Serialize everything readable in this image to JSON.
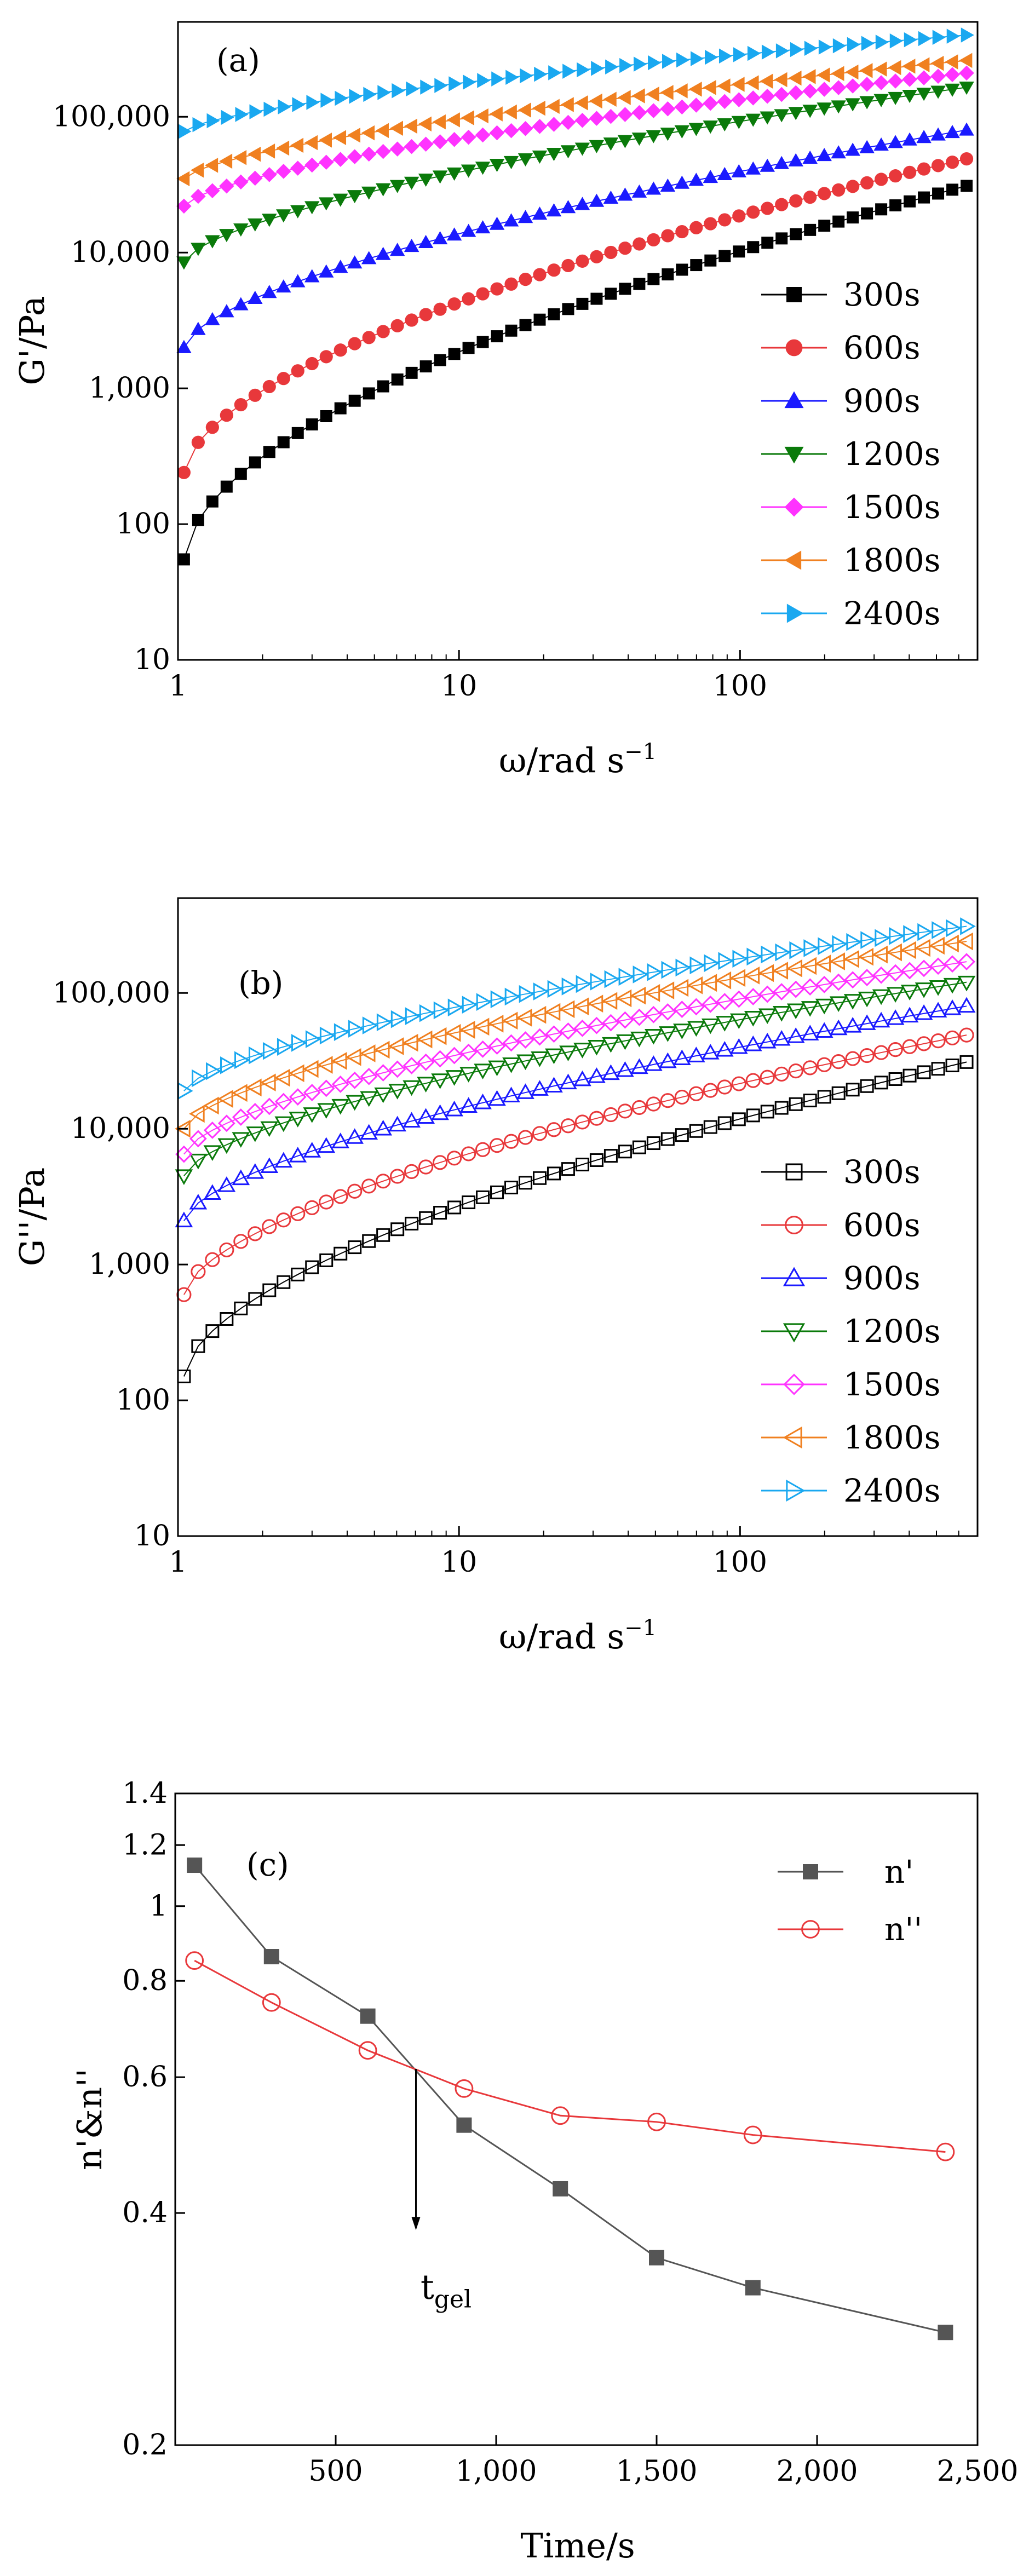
{
  "chart_data": [
    {
      "type": "scatter",
      "panel": "(a)",
      "ylabel": "G'/Pa",
      "xlabel": {
        "base": "ω/rad s",
        "sup": "−1"
      },
      "xscale": "log",
      "yscale": "log",
      "xlim": [
        1,
        700
      ],
      "ylim": [
        10,
        500000
      ],
      "xticks": [
        {
          "v": 1,
          "label": "1"
        },
        {
          "v": 10,
          "label": "10"
        },
        {
          "v": 100,
          "label": "100"
        }
      ],
      "yticks": [
        {
          "v": 10,
          "label": "10"
        },
        {
          "v": 100,
          "label": "100"
        },
        {
          "v": 1000,
          "label": "1,000"
        },
        {
          "v": 10000,
          "label": "10,000"
        },
        {
          "v": 100000,
          "label": "100,000"
        }
      ],
      "marker_fill": "solid",
      "legend_position": "lower-right",
      "series": [
        {
          "name": "300s",
          "color": "#000000",
          "marker": "square",
          "y_start": 55,
          "y_end": 31000
        },
        {
          "name": "600s",
          "color": "#e8383b",
          "marker": "circle",
          "y_start": 240,
          "y_end": 49000
        },
        {
          "name": "900s",
          "color": "#1a1aff",
          "marker": "triangle-up",
          "y_start": 2000,
          "y_end": 80000
        },
        {
          "name": "1200s",
          "color": "#0a7a0a",
          "marker": "triangle-down",
          "y_start": 8500,
          "y_end": 165000
        },
        {
          "name": "1500s",
          "color": "#ff33ff",
          "marker": "diamond",
          "y_start": 22000,
          "y_end": 210000
        },
        {
          "name": "1800s",
          "color": "#f08020",
          "marker": "triangle-left",
          "y_start": 35000,
          "y_end": 260000
        },
        {
          "name": "2400s",
          "color": "#1aa8f0",
          "marker": "triangle-right",
          "y_start": 78000,
          "y_end": 400000
        }
      ]
    },
    {
      "type": "scatter",
      "panel": "(b)",
      "ylabel": "G''/Pa",
      "xlabel": {
        "base": "ω/rad s",
        "sup": "−1"
      },
      "xscale": "log",
      "yscale": "log",
      "xlim": [
        1,
        700
      ],
      "ylim": [
        10,
        500000
      ],
      "xticks": [
        {
          "v": 1,
          "label": "1"
        },
        {
          "v": 10,
          "label": "10"
        },
        {
          "v": 100,
          "label": "100"
        }
      ],
      "yticks": [
        {
          "v": 10,
          "label": "10"
        },
        {
          "v": 100,
          "label": "100"
        },
        {
          "v": 1000,
          "label": "1,000"
        },
        {
          "v": 10000,
          "label": "10,000"
        },
        {
          "v": 100000,
          "label": "100,000"
        }
      ],
      "marker_fill": "open",
      "legend_position": "lower-right",
      "series": [
        {
          "name": "300s",
          "color": "#000000",
          "marker": "square",
          "y_start": 150,
          "y_end": 31000
        },
        {
          "name": "600s",
          "color": "#e8383b",
          "marker": "circle",
          "y_start": 600,
          "y_end": 49000
        },
        {
          "name": "900s",
          "color": "#1a1aff",
          "marker": "triangle-up",
          "y_start": 2100,
          "y_end": 80000
        },
        {
          "name": "1200s",
          "color": "#0a7a0a",
          "marker": "triangle-down",
          "y_start": 4500,
          "y_end": 120000
        },
        {
          "name": "1500s",
          "color": "#ff33ff",
          "marker": "diamond",
          "y_start": 6500,
          "y_end": 170000
        },
        {
          "name": "1800s",
          "color": "#f08020",
          "marker": "triangle-left",
          "y_start": 10000,
          "y_end": 240000
        },
        {
          "name": "2400s",
          "color": "#1aa8f0",
          "marker": "triangle-right",
          "y_start": 19000,
          "y_end": 310000
        }
      ]
    },
    {
      "type": "line",
      "panel": "(c)",
      "ylabel": "n'&n''",
      "xlabel": "Time/s",
      "xscale": "linear",
      "yscale": "log",
      "xlim": [
        0,
        2500
      ],
      "ylim": [
        0.2,
        1.4
      ],
      "xticks": [
        {
          "v": 500,
          "label": "500"
        },
        {
          "v": 1000,
          "label": "1,000"
        },
        {
          "v": 1500,
          "label": "1,500"
        },
        {
          "v": 2000,
          "label": "2,000"
        },
        {
          "v": 2500,
          "label": "2,500"
        }
      ],
      "yticks": [
        {
          "v": 0.2,
          "label": "0.2"
        },
        {
          "v": 0.4,
          "label": "0.4"
        },
        {
          "v": 0.6,
          "label": "0.6"
        },
        {
          "v": 0.8,
          "label": "0.8"
        },
        {
          "v": 1,
          "label": "1"
        },
        {
          "v": 1.2,
          "label": "1.2"
        },
        {
          "v": 1.4,
          "label": "1.4"
        }
      ],
      "legend_position": "top-right",
      "series": [
        {
          "name": "n'",
          "color": "#555555",
          "marker": "square",
          "fill": "solid",
          "x": [
            60,
            300,
            600,
            900,
            1200,
            1500,
            1800,
            2400
          ],
          "y": [
            1.13,
            0.86,
            0.72,
            0.52,
            0.43,
            0.35,
            0.32,
            0.28
          ]
        },
        {
          "name": "n''",
          "color": "#e8383b",
          "marker": "circle",
          "fill": "open",
          "x": [
            60,
            300,
            600,
            900,
            1200,
            1500,
            1800,
            2400
          ],
          "y": [
            0.85,
            0.75,
            0.65,
            0.58,
            0.535,
            0.525,
            0.505,
            0.48
          ]
        }
      ],
      "annotation": {
        "text": "t",
        "sub": "gel",
        "arrow_x": 750,
        "arrow_from_y": 0.615,
        "arrow_to_y": 0.38
      }
    }
  ]
}
